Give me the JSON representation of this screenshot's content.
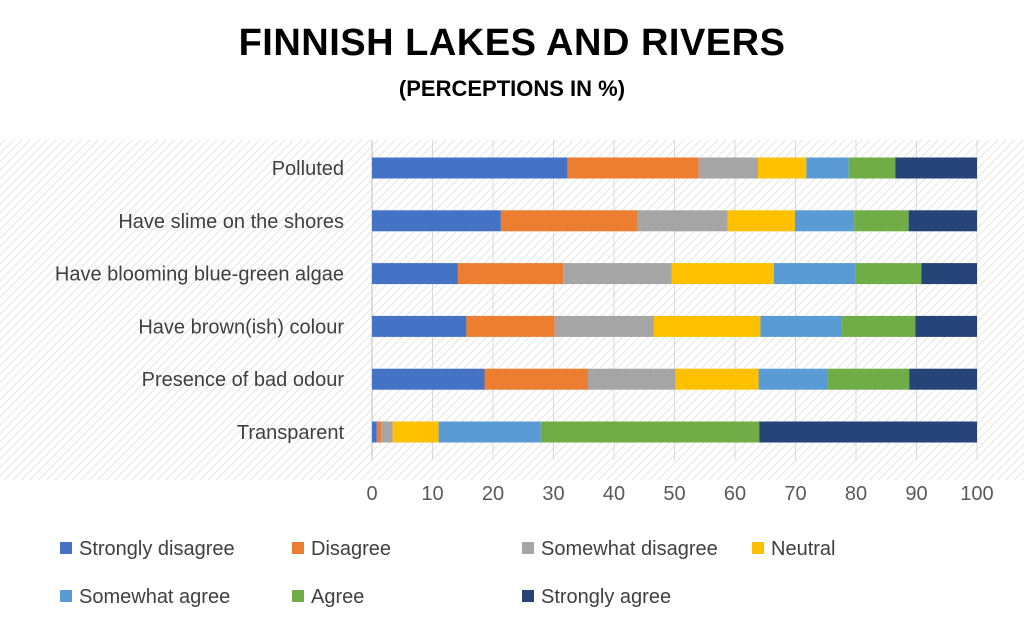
{
  "chart_data": {
    "type": "bar",
    "orientation": "horizontal",
    "stacked": true,
    "title": "FINNISH LAKES AND RIVERS",
    "subtitle": "(PERCEPTIONS IN %)",
    "categories": [
      "Polluted",
      "Have slime on the shores",
      "Have blooming blue-green algae",
      "Have brown(ish) colour",
      "Presence of bad odour",
      "Transparent"
    ],
    "xlim": [
      0,
      100
    ],
    "xticks": [
      "0",
      "10",
      "20",
      "30",
      "40",
      "50",
      "60",
      "70",
      "80",
      "90",
      "100"
    ],
    "legend_position": "bottom",
    "series": [
      {
        "name": "Strongly disagree",
        "color": "#4472C4",
        "values": [
          32.3,
          21.3,
          14.2,
          15.6,
          18.6,
          0.8
        ]
      },
      {
        "name": "Disagree",
        "color": "#ED7D31",
        "values": [
          21.7,
          22.5,
          17.4,
          14.6,
          17.1,
          0.7
        ]
      },
      {
        "name": "Somewhat disagree",
        "color": "#A5A5A5",
        "values": [
          9.8,
          15.0,
          17.9,
          16.4,
          14.5,
          1.9
        ]
      },
      {
        "name": "Neutral",
        "color": "#FFC000",
        "values": [
          8.0,
          11.1,
          16.9,
          17.6,
          13.7,
          7.6
        ]
      },
      {
        "name": "Somewhat agree",
        "color": "#5B9BD5",
        "values": [
          7.0,
          9.8,
          13.5,
          13.5,
          11.4,
          16.9
        ]
      },
      {
        "name": "Agree",
        "color": "#70AD47",
        "values": [
          7.7,
          9.0,
          10.9,
          12.1,
          13.5,
          36.1
        ]
      },
      {
        "name": "Strongly agree",
        "color": "#264478",
        "values": [
          13.5,
          11.3,
          9.2,
          10.2,
          11.2,
          36.0
        ]
      }
    ]
  }
}
